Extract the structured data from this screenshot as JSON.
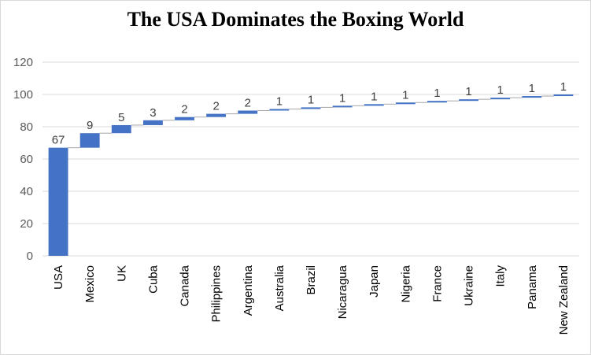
{
  "chart_data": {
    "type": "bar",
    "subtype": "waterfall",
    "title": "The USA Dominates the Boxing World",
    "xlabel": "",
    "ylabel": "",
    "ylim": [
      0,
      120
    ],
    "yticks": [
      "0",
      "20",
      "40",
      "60",
      "80",
      "100",
      "120"
    ],
    "categories": [
      "USA",
      "Mexico",
      "UK",
      "Cuba",
      "Canada",
      "Philippines",
      "Argentina",
      "Australia",
      "Brazil",
      "Nicaragua",
      "Japan",
      "Nigeria",
      "France",
      "Ukraine",
      "Italy",
      "Panama",
      "New Zealand"
    ],
    "values": [
      67,
      9,
      5,
      3,
      2,
      2,
      2,
      1,
      1,
      1,
      1,
      1,
      1,
      1,
      1,
      1,
      1
    ],
    "grid": true,
    "legend": "none",
    "colors": {
      "bar": "#4472c4",
      "grid": "#d9d9d9",
      "connector": "#a6a6a6"
    }
  }
}
